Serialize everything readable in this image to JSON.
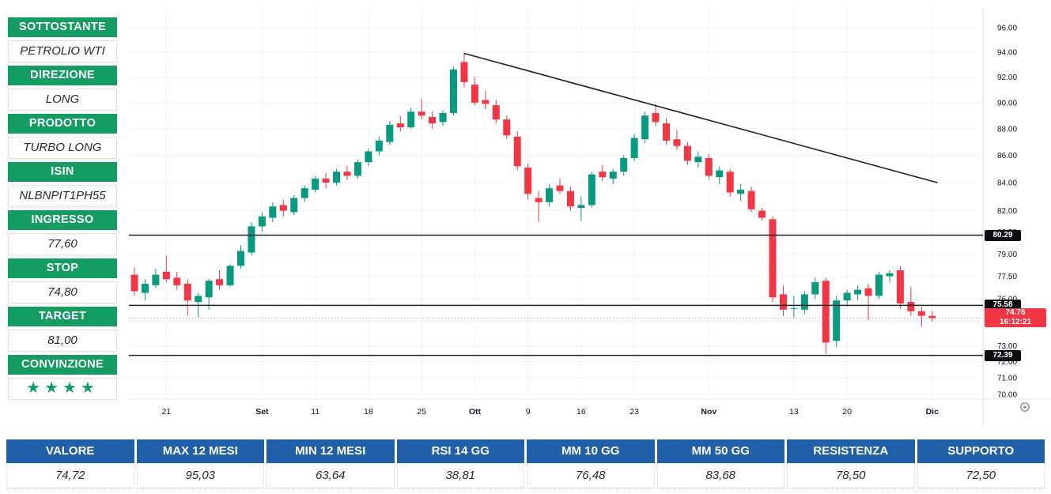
{
  "colors": {
    "accent_green": "#149c62",
    "accent_blue": "#2160a8",
    "candle_up": "#089981",
    "candle_down": "#f23645",
    "level_line": "#1e222d",
    "grid": "#f0f3fa",
    "axis_text": "#131722",
    "last_price_red": "#f23645",
    "label_black": "#0c0d10"
  },
  "sidebar": {
    "items": [
      {
        "label": "SOTTOSTANTE",
        "value": "PETROLIO WTI"
      },
      {
        "label": "DIREZIONE",
        "value": "LONG"
      },
      {
        "label": "PRODOTTO",
        "value": "TURBO LONG"
      },
      {
        "label": "ISIN",
        "value": "NLBNPIT1PH55"
      },
      {
        "label": "INGRESSO",
        "value": "77,60"
      },
      {
        "label": "STOP",
        "value": "74,80"
      },
      {
        "label": "TARGET",
        "value": "81,00"
      },
      {
        "label": "CONVINZIONE",
        "value": "",
        "stars": 4
      }
    ]
  },
  "table": {
    "columns": [
      {
        "header": "VALORE",
        "value": "74,72"
      },
      {
        "header": "MAX 12 MESI",
        "value": "95,03"
      },
      {
        "header": "MIN 12 MESI",
        "value": "63,64"
      },
      {
        "header": "RSI 14 GG",
        "value": "38,81"
      },
      {
        "header": "MM 10 GG",
        "value": "76,48"
      },
      {
        "header": "MM 50 GG",
        "value": "83,68"
      },
      {
        "header": "RESISTENZA",
        "value": "78,50"
      },
      {
        "header": "SUPPORTO",
        "value": "72,50"
      }
    ]
  },
  "chart_data": {
    "type": "candlestick",
    "symbol": "PETROLIO WTI",
    "scale": "log",
    "grid": true,
    "y_range": [
      70,
      96
    ],
    "y_ticks": [
      96,
      94,
      92,
      90,
      88,
      86,
      84,
      82,
      80.5,
      79,
      77.5,
      76,
      74.5,
      73,
      72,
      71,
      70
    ],
    "x_ticks": [
      {
        "label": "21",
        "index": 3,
        "bold": false
      },
      {
        "label": "Set",
        "index": 12,
        "bold": true
      },
      {
        "label": "11",
        "index": 17,
        "bold": false
      },
      {
        "label": "18",
        "index": 22,
        "bold": false
      },
      {
        "label": "25",
        "index": 27,
        "bold": false
      },
      {
        "label": "Ott",
        "index": 32,
        "bold": true
      },
      {
        "label": "9",
        "index": 37,
        "bold": false
      },
      {
        "label": "16",
        "index": 42,
        "bold": false
      },
      {
        "label": "23",
        "index": 47,
        "bold": false
      },
      {
        "label": "Nov",
        "index": 54,
        "bold": true
      },
      {
        "label": "13",
        "index": 62,
        "bold": false
      },
      {
        "label": "20",
        "index": 67,
        "bold": false
      },
      {
        "label": "Dic",
        "index": 75,
        "bold": true
      }
    ],
    "levels": [
      {
        "price": 80.29,
        "label": "80.29"
      },
      {
        "price": 75.58,
        "label": "75.58"
      },
      {
        "price": 72.39,
        "label": "72.39"
      }
    ],
    "last_price": 74.76,
    "last_price_label": "74.76",
    "last_time": "16:12:21",
    "trendline": {
      "from_index": 31,
      "from_price": 93.9,
      "to_index": 75.5,
      "to_price": 84.0
    },
    "candles": [
      [
        77.6,
        78.1,
        76.2,
        76.5
      ],
      [
        76.4,
        77.3,
        75.9,
        77.0
      ],
      [
        76.9,
        78.0,
        76.7,
        77.6
      ],
      [
        77.8,
        78.9,
        77.1,
        77.3
      ],
      [
        77.4,
        77.8,
        76.6,
        76.9
      ],
      [
        77.0,
        77.3,
        74.9,
        75.9
      ],
      [
        75.8,
        76.4,
        74.8,
        76.2
      ],
      [
        76.1,
        77.3,
        75.3,
        77.2
      ],
      [
        77.3,
        77.9,
        76.6,
        76.9
      ],
      [
        76.9,
        78.3,
        76.8,
        78.2
      ],
      [
        78.2,
        79.6,
        78.0,
        79.2
      ],
      [
        79.1,
        81.2,
        78.9,
        80.9
      ],
      [
        80.9,
        81.9,
        80.5,
        81.6
      ],
      [
        81.5,
        82.6,
        81.2,
        82.3
      ],
      [
        82.4,
        82.8,
        81.6,
        82.0
      ],
      [
        81.9,
        83.1,
        81.7,
        82.9
      ],
      [
        82.9,
        83.8,
        82.6,
        83.6
      ],
      [
        83.5,
        84.5,
        83.3,
        84.3
      ],
      [
        84.3,
        84.7,
        83.6,
        84.0
      ],
      [
        84.0,
        85.0,
        83.8,
        84.8
      ],
      [
        84.8,
        85.2,
        84.2,
        84.5
      ],
      [
        84.5,
        85.7,
        84.3,
        85.5
      ],
      [
        85.5,
        86.5,
        85.2,
        86.3
      ],
      [
        86.3,
        87.4,
        86.0,
        87.1
      ],
      [
        87.0,
        88.6,
        86.8,
        88.3
      ],
      [
        88.4,
        89.0,
        87.8,
        88.1
      ],
      [
        88.1,
        89.6,
        88.0,
        89.3
      ],
      [
        89.3,
        90.3,
        88.7,
        89.0
      ],
      [
        88.9,
        89.3,
        88.0,
        88.4
      ],
      [
        88.5,
        89.4,
        88.2,
        89.2
      ],
      [
        89.2,
        92.8,
        89.0,
        92.6
      ],
      [
        93.2,
        93.9,
        91.2,
        91.6
      ],
      [
        91.4,
        92.0,
        89.8,
        90.0
      ],
      [
        90.2,
        90.9,
        89.5,
        89.9
      ],
      [
        89.8,
        90.2,
        88.4,
        88.7
      ],
      [
        88.7,
        89.0,
        87.2,
        87.5
      ],
      [
        87.4,
        87.8,
        84.9,
        85.2
      ],
      [
        85.1,
        85.4,
        82.8,
        83.2
      ],
      [
        82.9,
        83.4,
        81.2,
        82.6
      ],
      [
        82.6,
        83.9,
        82.3,
        83.6
      ],
      [
        83.8,
        84.3,
        83.2,
        83.4
      ],
      [
        83.4,
        83.7,
        82.0,
        82.3
      ],
      [
        82.2,
        83.0,
        81.3,
        82.4
      ],
      [
        82.4,
        84.8,
        82.2,
        84.6
      ],
      [
        84.8,
        85.3,
        84.1,
        84.4
      ],
      [
        84.3,
        85.0,
        83.9,
        84.8
      ],
      [
        84.8,
        86.0,
        84.5,
        85.8
      ],
      [
        85.8,
        87.6,
        85.6,
        87.3
      ],
      [
        87.2,
        89.3,
        86.9,
        89.0
      ],
      [
        89.2,
        89.9,
        88.2,
        88.5
      ],
      [
        88.4,
        88.8,
        86.8,
        87.1
      ],
      [
        87.2,
        87.9,
        86.4,
        86.7
      ],
      [
        86.7,
        87.0,
        85.3,
        85.6
      ],
      [
        85.5,
        86.3,
        85.1,
        85.9
      ],
      [
        85.8,
        86.1,
        84.2,
        84.5
      ],
      [
        84.4,
        85.2,
        83.9,
        84.9
      ],
      [
        84.8,
        85.0,
        83.0,
        83.3
      ],
      [
        83.2,
        83.9,
        82.7,
        83.5
      ],
      [
        83.4,
        83.7,
        81.9,
        82.1
      ],
      [
        82.0,
        82.2,
        81.3,
        81.5
      ],
      [
        81.4,
        81.6,
        75.8,
        76.1
      ],
      [
        76.3,
        76.9,
        74.9,
        75.3
      ],
      [
        75.4,
        76.2,
        74.8,
        75.4
      ],
      [
        75.3,
        76.5,
        75.0,
        76.3
      ],
      [
        76.3,
        77.4,
        76.0,
        77.1
      ],
      [
        77.2,
        77.4,
        72.5,
        73.2
      ],
      [
        73.3,
        76.2,
        72.9,
        75.9
      ],
      [
        75.9,
        76.6,
        75.5,
        76.4
      ],
      [
        76.3,
        76.9,
        75.9,
        76.6
      ],
      [
        76.7,
        77.0,
        74.6,
        76.2
      ],
      [
        76.2,
        77.8,
        76.0,
        77.6
      ],
      [
        77.5,
        77.9,
        77.1,
        77.7
      ],
      [
        77.9,
        78.2,
        75.4,
        75.7
      ],
      [
        75.8,
        76.8,
        74.9,
        75.2
      ],
      [
        75.2,
        75.5,
        74.2,
        74.9
      ],
      [
        74.9,
        75.2,
        74.5,
        74.76
      ]
    ]
  }
}
